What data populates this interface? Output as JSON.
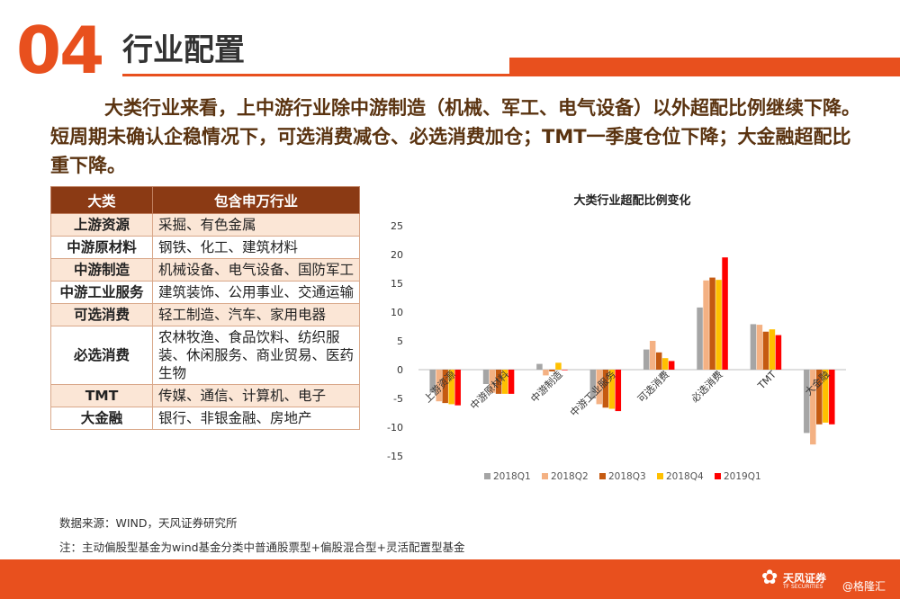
{
  "header": {
    "section_number": "04",
    "title": "行业配置"
  },
  "summary": {
    "line1": "大类行业来看，上中游行业除中游制造（机械、军工、电气设备）以外超配比例继续下降。",
    "line2": "短周期未确认企稳情况下，可选消费减仓、必选消费加仓；TMT一季度仓位下降；大金融超配比重下降。"
  },
  "table": {
    "headers": [
      "大类",
      "包含申万行业"
    ],
    "rows": [
      {
        "category": "上游资源",
        "industries": "采掘、有色金属"
      },
      {
        "category": "中游原材料",
        "industries": "钢铁、化工、建筑材料"
      },
      {
        "category": "中游制造",
        "industries": "机械设备、电气设备、国防军工"
      },
      {
        "category": "中游工业服务",
        "industries": "建筑装饰、公用事业、交通运输"
      },
      {
        "category": "可选消费",
        "industries": "轻工制造、汽车、家用电器"
      },
      {
        "category": "必选消费",
        "industries": "农林牧渔、食品饮料、纺织服装、休闲服务、商业贸易、医药生物"
      },
      {
        "category": "TMT",
        "industries": "传媒、通信、计算机、电子"
      },
      {
        "category": "大金融",
        "industries": "银行、非银金融、房地产"
      }
    ]
  },
  "notes": {
    "source": "数据来源：WIND，天风证券研究所",
    "note": "注：主动偏股型基金为wind基金分类中普通股票型+偏股混合型+灵活配置型基金"
  },
  "footer": {
    "logo_text": "天风证券",
    "logo_sub": "TF SECURITIES",
    "watermark": "@格隆汇"
  },
  "colors": {
    "accent": "#e8501e",
    "table_header": "#8b3a14",
    "table_odd": "#fbe6d6"
  },
  "chart_data": {
    "type": "bar",
    "title": "大类行业超配比例变化",
    "categories": [
      "上游资源",
      "中游原材料",
      "中游制造",
      "中游工业服务",
      "可选消费",
      "必选消费",
      "TMT",
      "大金融"
    ],
    "series": [
      {
        "name": "2018Q1",
        "color": "#a5a5a5",
        "values": [
          -4,
          -2.5,
          1,
          -5,
          3.5,
          10.8,
          7.9,
          -11
        ]
      },
      {
        "name": "2018Q2",
        "color": "#f4b183",
        "values": [
          -5.5,
          -4,
          -1,
          -6,
          5,
          15.5,
          7.8,
          -13
        ]
      },
      {
        "name": "2018Q3",
        "color": "#c55a11",
        "values": [
          -5.8,
          -4.2,
          -0.3,
          -6.6,
          3,
          16,
          6.6,
          -9.5
        ]
      },
      {
        "name": "2018Q4",
        "color": "#ffc000",
        "values": [
          -6,
          -4.2,
          1.2,
          -6.8,
          2,
          15.6,
          7,
          -9.2
        ]
      },
      {
        "name": "2019Q1",
        "color": "#ff0000",
        "values": [
          -6.2,
          -4.2,
          0,
          -7.2,
          1.5,
          19.5,
          6,
          -9.5
        ]
      }
    ],
    "ylim": [
      -15,
      25
    ],
    "yticks": [
      -15,
      -10,
      -5,
      0,
      5,
      10,
      15,
      20,
      25
    ],
    "grid": false,
    "legend": "bottom"
  }
}
